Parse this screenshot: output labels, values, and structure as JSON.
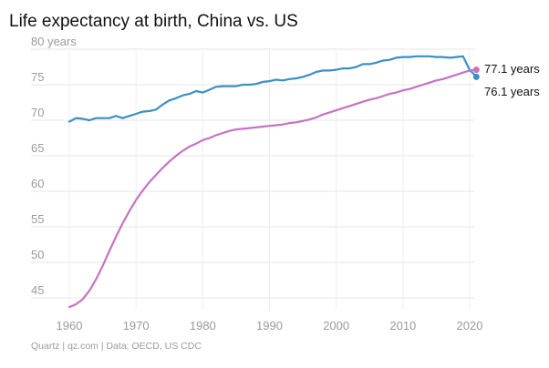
{
  "chart_data": {
    "type": "line",
    "title": "Life expectancy at birth, China vs. US",
    "ylabel": "",
    "xlabel": "",
    "y_unit_label": "80 years",
    "xlim": [
      1960,
      2021
    ],
    "ylim": [
      44,
      80
    ],
    "x_ticks": [
      "1960",
      "1970",
      "1980",
      "1990",
      "2000",
      "2010",
      "2020"
    ],
    "y_ticks": [
      45,
      50,
      55,
      60,
      65,
      70,
      75,
      80
    ],
    "grid": "horizontal",
    "legend": "none",
    "x": [
      1960,
      1961,
      1962,
      1963,
      1964,
      1965,
      1966,
      1967,
      1968,
      1969,
      1970,
      1971,
      1972,
      1973,
      1974,
      1975,
      1976,
      1977,
      1978,
      1979,
      1980,
      1981,
      1982,
      1983,
      1984,
      1985,
      1986,
      1987,
      1988,
      1989,
      1990,
      1991,
      1992,
      1993,
      1994,
      1995,
      1996,
      1997,
      1998,
      1999,
      2000,
      2001,
      2002,
      2003,
      2004,
      2005,
      2006,
      2007,
      2008,
      2009,
      2010,
      2011,
      2012,
      2013,
      2014,
      2015,
      2016,
      2017,
      2018,
      2019,
      2020,
      2021
    ],
    "series": [
      {
        "color": "#3a8fc6",
        "values": [
          69.8,
          70.3,
          70.2,
          70.0,
          70.3,
          70.3,
          70.3,
          70.6,
          70.3,
          70.6,
          70.9,
          71.2,
          71.3,
          71.5,
          72.2,
          72.8,
          73.1,
          73.5,
          73.7,
          74.1,
          73.9,
          74.3,
          74.7,
          74.8,
          74.8,
          74.8,
          75.0,
          75.0,
          75.1,
          75.4,
          75.5,
          75.7,
          75.6,
          75.8,
          75.9,
          76.1,
          76.4,
          76.8,
          77.0,
          77.0,
          77.1,
          77.3,
          77.3,
          77.5,
          77.9,
          77.9,
          78.1,
          78.4,
          78.5,
          78.8,
          78.9,
          78.9,
          79.0,
          79.0,
          79.0,
          78.9,
          78.9,
          78.8,
          78.9,
          79.0,
          77.1,
          76.1
        ]
      },
      {
        "color": "#c772c2",
        "values": [
          43.7,
          44.1,
          44.8,
          46.0,
          47.6,
          49.5,
          51.6,
          53.6,
          55.5,
          57.2,
          58.8,
          60.1,
          61.3,
          62.3,
          63.3,
          64.2,
          65.0,
          65.7,
          66.3,
          66.7,
          67.2,
          67.5,
          67.9,
          68.2,
          68.5,
          68.7,
          68.8,
          68.9,
          69.0,
          69.1,
          69.2,
          69.3,
          69.4,
          69.6,
          69.7,
          69.9,
          70.1,
          70.4,
          70.8,
          71.1,
          71.4,
          71.7,
          72.0,
          72.3,
          72.6,
          72.9,
          73.1,
          73.4,
          73.7,
          73.9,
          74.2,
          74.4,
          74.7,
          75.0,
          75.3,
          75.6,
          75.8,
          76.1,
          76.4,
          76.7,
          77.0,
          77.1
        ]
      }
    ],
    "end_labels": [
      "77.1 years",
      "76.1 years"
    ]
  },
  "source": "Quartz | qz.com | Data: OECD, US CDC"
}
